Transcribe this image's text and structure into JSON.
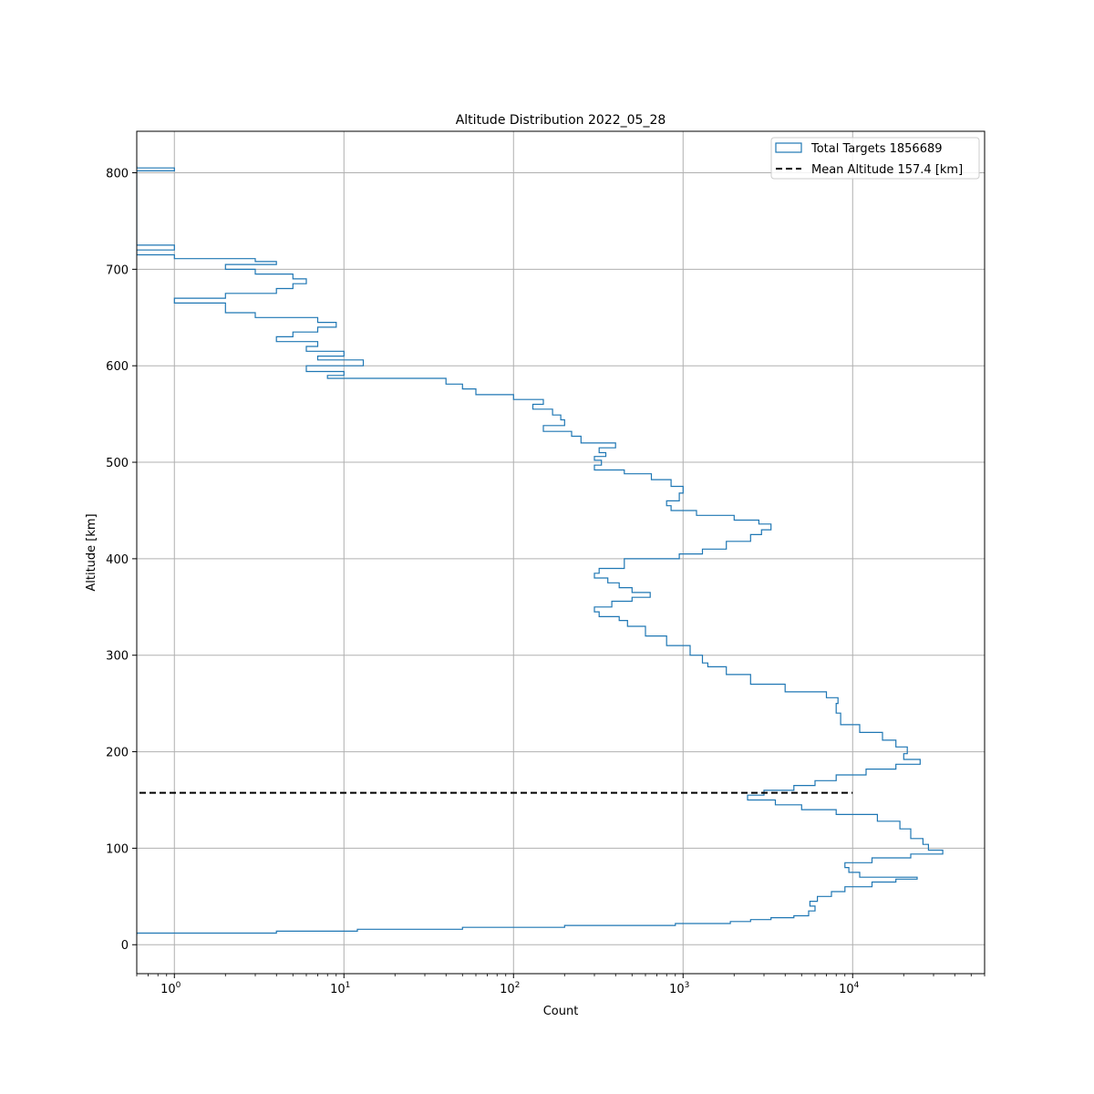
{
  "chart_data": {
    "type": "histogram",
    "title": "Altitude Distribution 2022_05_28",
    "xlabel": "Count",
    "ylabel": "Altitude [km]",
    "xscale": "log",
    "xlim": [
      0.6,
      60000
    ],
    "ylim": [
      -30,
      843
    ],
    "grid": true,
    "legend_position": "top-right",
    "x_ticks": [
      {
        "value": 1,
        "base": "10",
        "exp": "0"
      },
      {
        "value": 10,
        "base": "10",
        "exp": "1"
      },
      {
        "value": 100,
        "base": "10",
        "exp": "2"
      },
      {
        "value": 1000,
        "base": "10",
        "exp": "3"
      },
      {
        "value": 10000,
        "base": "10",
        "exp": "4"
      }
    ],
    "y_ticks": [
      {
        "value": 0,
        "label": "0"
      },
      {
        "value": 100,
        "label": "100"
      },
      {
        "value": 200,
        "label": "200"
      },
      {
        "value": 300,
        "label": "300"
      },
      {
        "value": 400,
        "label": "400"
      },
      {
        "value": 500,
        "label": "500"
      },
      {
        "value": 600,
        "label": "600"
      },
      {
        "value": 700,
        "label": "700"
      },
      {
        "value": 800,
        "label": "800"
      }
    ],
    "series": [
      {
        "name": "Total Targets 1856689",
        "style": "step-outline",
        "color": "#1f77b4",
        "profile": [
          [
            10,
            0.6
          ],
          [
            12,
            4
          ],
          [
            14,
            12
          ],
          [
            16,
            50
          ],
          [
            18,
            200
          ],
          [
            20,
            900
          ],
          [
            22,
            1900
          ],
          [
            24,
            2500
          ],
          [
            26,
            3300
          ],
          [
            28,
            4500
          ],
          [
            30,
            5500
          ],
          [
            35,
            6000
          ],
          [
            40,
            5600
          ],
          [
            45,
            6200
          ],
          [
            50,
            7500
          ],
          [
            55,
            9000
          ],
          [
            60,
            13000
          ],
          [
            65,
            18000
          ],
          [
            68,
            24000
          ],
          [
            70,
            11000
          ],
          [
            75,
            9500
          ],
          [
            80,
            9000
          ],
          [
            85,
            13000
          ],
          [
            90,
            22000
          ],
          [
            94,
            34000
          ],
          [
            98,
            28000
          ],
          [
            104,
            26000
          ],
          [
            110,
            22000
          ],
          [
            120,
            19000
          ],
          [
            128,
            14000
          ],
          [
            135,
            8000
          ],
          [
            140,
            5000
          ],
          [
            145,
            3500
          ],
          [
            150,
            2400
          ],
          [
            155,
            3000
          ],
          [
            160,
            4500
          ],
          [
            165,
            6000
          ],
          [
            170,
            8000
          ],
          [
            176,
            12000
          ],
          [
            182,
            18000
          ],
          [
            187,
            25000
          ],
          [
            192,
            20000
          ],
          [
            198,
            21000
          ],
          [
            205,
            18000
          ],
          [
            212,
            15000
          ],
          [
            220,
            11000
          ],
          [
            228,
            8500
          ],
          [
            240,
            8000
          ],
          [
            250,
            8200
          ],
          [
            256,
            7000
          ],
          [
            262,
            4000
          ],
          [
            270,
            2500
          ],
          [
            280,
            1800
          ],
          [
            288,
            1400
          ],
          [
            292,
            1300
          ],
          [
            300,
            1100
          ],
          [
            310,
            800
          ],
          [
            320,
            600
          ],
          [
            330,
            470
          ],
          [
            336,
            420
          ],
          [
            340,
            320
          ],
          [
            345,
            300
          ],
          [
            350,
            380
          ],
          [
            356,
            500
          ],
          [
            360,
            640
          ],
          [
            365,
            500
          ],
          [
            370,
            420
          ],
          [
            375,
            360
          ],
          [
            380,
            300
          ],
          [
            385,
            320
          ],
          [
            390,
            450
          ],
          [
            400,
            950
          ],
          [
            405,
            1300
          ],
          [
            410,
            1800
          ],
          [
            418,
            2500
          ],
          [
            425,
            2900
          ],
          [
            430,
            3300
          ],
          [
            436,
            2800
          ],
          [
            440,
            2000
          ],
          [
            445,
            1200
          ],
          [
            450,
            850
          ],
          [
            455,
            800
          ],
          [
            460,
            950
          ],
          [
            468,
            1000
          ],
          [
            475,
            850
          ],
          [
            482,
            650
          ],
          [
            488,
            450
          ],
          [
            492,
            300
          ],
          [
            497,
            330
          ],
          [
            502,
            300
          ],
          [
            506,
            350
          ],
          [
            510,
            320
          ],
          [
            515,
            400
          ],
          [
            520,
            250
          ],
          [
            527,
            220
          ],
          [
            532,
            150
          ],
          [
            538,
            200
          ],
          [
            544,
            190
          ],
          [
            549,
            170
          ],
          [
            555,
            130
          ],
          [
            560,
            150
          ],
          [
            565,
            100
          ],
          [
            570,
            60
          ],
          [
            576,
            50
          ],
          [
            581,
            40
          ],
          [
            587,
            8
          ],
          [
            590,
            10
          ],
          [
            594,
            6
          ],
          [
            600,
            13
          ],
          [
            606,
            7
          ],
          [
            610,
            10
          ],
          [
            615,
            6
          ],
          [
            620,
            7
          ],
          [
            625,
            4
          ],
          [
            630,
            5
          ],
          [
            635,
            7
          ],
          [
            640,
            9
          ],
          [
            645,
            7
          ],
          [
            650,
            3
          ],
          [
            655,
            2
          ],
          [
            660,
            2
          ],
          [
            665,
            1
          ],
          [
            670,
            2
          ],
          [
            675,
            4
          ],
          [
            680,
            5
          ],
          [
            685,
            6
          ],
          [
            690,
            5
          ],
          [
            695,
            3
          ],
          [
            700,
            2
          ],
          [
            705,
            4
          ],
          [
            708,
            3
          ],
          [
            711,
            1
          ],
          [
            715,
            0.6
          ],
          [
            720,
            1
          ],
          [
            725,
            0.6
          ],
          [
            740,
            0.6
          ],
          [
            800,
            0.6
          ],
          [
            802,
            1
          ],
          [
            805,
            0.6
          ]
        ]
      },
      {
        "name": "Mean Altitude 157.4 [km]",
        "style": "dashed-line",
        "color": "#000000",
        "y": 157.4,
        "x_range": [
          0.6,
          10000
        ]
      }
    ]
  }
}
